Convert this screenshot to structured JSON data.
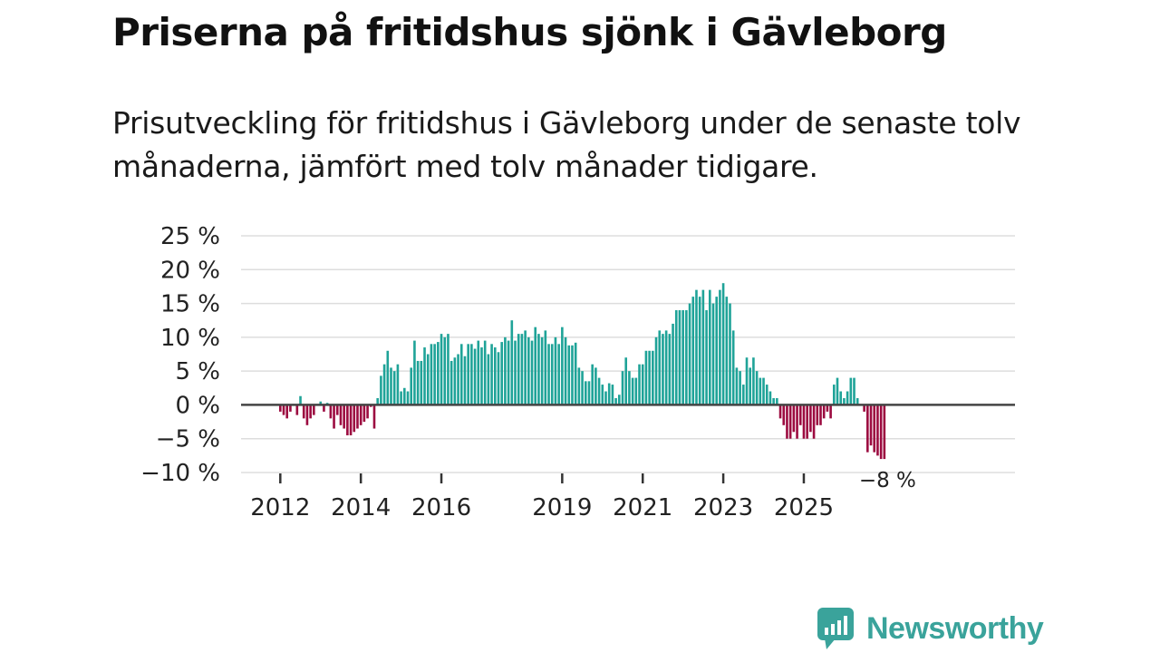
{
  "title": "Priserna på fritidshus sjönk i Gävleborg",
  "subtitle": "Prisutveckling för fritidshus i Gävleborg under de senaste tolv månaderna, jämfört med tolv månader tidigare.",
  "brand": {
    "name": "Newsworthy"
  },
  "colors": {
    "positive": "#1fa398",
    "negative": "#9c0b40",
    "zero_line": "#444444",
    "grid": "#dddddd",
    "text": "#222222",
    "brand": "#3aa39b"
  },
  "chart_data": {
    "type": "bar",
    "title": "Priserna på fritidshus sjönk i Gävleborg",
    "xlabel": "",
    "ylabel": "",
    "unit": "%",
    "ylim": [
      -10,
      25
    ],
    "y_ticks": [
      25,
      20,
      15,
      10,
      5,
      0,
      -5,
      -10
    ],
    "y_tick_labels": [
      "25 %",
      "20 %",
      "15 %",
      "10 %",
      "5 %",
      "0 %",
      "−5 %",
      "−10 %"
    ],
    "x_start_year": 2012,
    "x_start_month": 1,
    "x_ticks": [
      {
        "label": "2012",
        "year": 2012
      },
      {
        "label": "2014",
        "year": 2014
      },
      {
        "label": "2016",
        "year": 2016
      },
      {
        "label": "2019",
        "year": 2019
      },
      {
        "label": "2021",
        "year": 2021
      },
      {
        "label": "2023",
        "year": 2023
      },
      {
        "label": "2025",
        "year": 2025
      }
    ],
    "end_annotation": "−8 %",
    "values": [
      -1,
      -1.5,
      -2,
      -1,
      0,
      -1.5,
      1.3,
      -2,
      -3,
      -2,
      -1.5,
      0,
      0.5,
      -1,
      0.3,
      -2,
      -3.5,
      -1.5,
      -3,
      -3.5,
      -4.5,
      -4.5,
      -4,
      -3.5,
      -3,
      -2.5,
      -2,
      -0.3,
      -3.5,
      1,
      4.3,
      6,
      8,
      5.5,
      5,
      6,
      2,
      2.5,
      2,
      5.5,
      9.5,
      6.5,
      6.5,
      8.5,
      7.5,
      9,
      9,
      9.3,
      10.5,
      10,
      10.5,
      6.5,
      7,
      7.5,
      9,
      7.2,
      9,
      9,
      8.3,
      9.5,
      8.5,
      9.5,
      7.5,
      9,
      8.5,
      7.8,
      9.3,
      10,
      9.5,
      12.5,
      9.5,
      10.5,
      10.5,
      11,
      10,
      9.5,
      11.5,
      10.5,
      10,
      11,
      9,
      9,
      10,
      9,
      11.5,
      10,
      8.8,
      8.8,
      9.2,
      5.5,
      5,
      3.5,
      3.5,
      6,
      5.5,
      4,
      3,
      2,
      3.2,
      3,
      1,
      1.5,
      5,
      7,
      5,
      4,
      4,
      6,
      6,
      8,
      8,
      8,
      10,
      11,
      10.5,
      11,
      10.5,
      12,
      14,
      14,
      14,
      14,
      15,
      16,
      17,
      16,
      17,
      14,
      17,
      15,
      16,
      17,
      18,
      16,
      15,
      11,
      5.5,
      5,
      3,
      7,
      5.5,
      7,
      5,
      4,
      4,
      3,
      2,
      1,
      1,
      -2,
      -3,
      -5,
      -5,
      -4,
      -5,
      -3,
      -5,
      -5,
      -4,
      -5,
      -3,
      -3,
      -2,
      -1,
      -2,
      3,
      4,
      2,
      1,
      2,
      4,
      4,
      1,
      0.1,
      -1,
      -7,
      -6,
      -7,
      -7.5,
      -8,
      -8
    ]
  }
}
